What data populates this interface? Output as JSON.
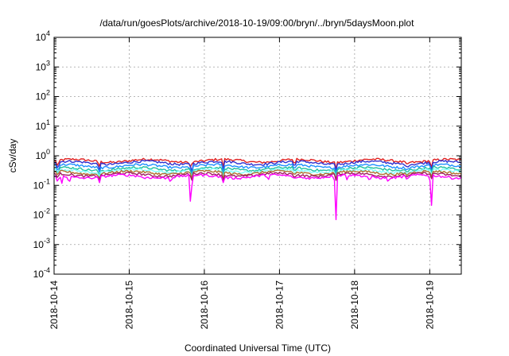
{
  "chart_data": {
    "type": "line",
    "title": "/data/run/goesPlots/archive/2018-10-19/09:00/bryn/../bryn/5daysMoon.plot",
    "xlabel": "Coordinated Universal Time (UTC)",
    "ylabel": "cSv/day",
    "yscale": "log",
    "ylim": [
      0.0001,
      10000
    ],
    "xlim": [
      0,
      5.42
    ],
    "x_ticks": [
      {
        "value": 0,
        "label": "2018-10-14"
      },
      {
        "value": 1,
        "label": "2018-10-15"
      },
      {
        "value": 2,
        "label": "2018-10-16"
      },
      {
        "value": 3,
        "label": "2018-10-17"
      },
      {
        "value": 4,
        "label": "2018-10-18"
      },
      {
        "value": 5,
        "label": "2018-10-19"
      }
    ],
    "y_ticks": [
      {
        "value": 0.0001,
        "base": "10",
        "exp": "-4"
      },
      {
        "value": 0.001,
        "base": "10",
        "exp": "-3"
      },
      {
        "value": 0.01,
        "base": "10",
        "exp": "-2"
      },
      {
        "value": 0.1,
        "base": "10",
        "exp": "-1"
      },
      {
        "value": 1,
        "base": "10",
        "exp": "0"
      },
      {
        "value": 10,
        "base": "10",
        "exp": "1"
      },
      {
        "value": 100,
        "base": "10",
        "exp": "2"
      },
      {
        "value": 1000,
        "base": "10",
        "exp": "3"
      },
      {
        "value": 10000,
        "base": "10",
        "exp": "4"
      }
    ],
    "grid": true,
    "legend": "none",
    "series": [
      {
        "color": "#e02020",
        "level": 0.68,
        "dips": [
          [
            0.05,
            0.35
          ],
          [
            0.6,
            0.4
          ],
          [
            1.82,
            0.35
          ],
          [
            2.25,
            0.4
          ],
          [
            3.2,
            0.45
          ],
          [
            3.75,
            0.35
          ],
          [
            4.7,
            0.45
          ],
          [
            5.02,
            0.35
          ]
        ]
      },
      {
        "color": "#3030d0",
        "level": 0.58,
        "dips": [
          [
            0.05,
            0.3
          ],
          [
            0.6,
            0.3
          ],
          [
            1.83,
            0.25
          ],
          [
            2.25,
            0.3
          ],
          [
            3.2,
            0.35
          ],
          [
            3.75,
            0.3
          ],
          [
            4.7,
            0.35
          ],
          [
            5.02,
            0.3
          ]
        ]
      },
      {
        "color": "#1e90ff",
        "level": 0.45,
        "dips": [
          [
            0.05,
            0.25
          ],
          [
            0.6,
            0.25
          ],
          [
            1.83,
            0.2
          ],
          [
            2.25,
            0.25
          ],
          [
            3.2,
            0.3
          ],
          [
            3.75,
            0.25
          ],
          [
            4.7,
            0.3
          ],
          [
            5.02,
            0.25
          ]
        ]
      },
      {
        "color": "#20c0a0",
        "level": 0.36,
        "dips": [
          [
            0.05,
            0.22
          ],
          [
            0.6,
            0.2
          ],
          [
            1.83,
            0.18
          ],
          [
            2.25,
            0.2
          ],
          [
            3.2,
            0.25
          ],
          [
            3.75,
            0.2
          ],
          [
            4.7,
            0.25
          ],
          [
            5.02,
            0.22
          ]
        ]
      },
      {
        "color": "#80ffff",
        "level": 0.31,
        "dips": [
          [
            0.05,
            0.2
          ],
          [
            0.6,
            0.18
          ],
          [
            1.83,
            0.16
          ],
          [
            2.25,
            0.18
          ],
          [
            3.2,
            0.22
          ],
          [
            3.75,
            0.18
          ],
          [
            4.7,
            0.22
          ],
          [
            5.02,
            0.2
          ]
        ]
      },
      {
        "color": "#b07030",
        "level": 0.27,
        "dips": [
          [
            0.05,
            0.18
          ],
          [
            0.6,
            0.16
          ],
          [
            1.83,
            0.15
          ],
          [
            2.25,
            0.16
          ],
          [
            3.2,
            0.2
          ],
          [
            3.75,
            0.16
          ],
          [
            4.7,
            0.2
          ],
          [
            5.02,
            0.18
          ]
        ]
      },
      {
        "color": "#a02060",
        "level": 0.23,
        "dips": [
          [
            0.05,
            0.15
          ],
          [
            0.6,
            0.14
          ],
          [
            1.83,
            0.13
          ],
          [
            2.25,
            0.14
          ],
          [
            3.2,
            0.17
          ],
          [
            3.75,
            0.14
          ],
          [
            4.7,
            0.17
          ],
          [
            5.02,
            0.15
          ]
        ]
      },
      {
        "color": "#ff00ff",
        "level": 0.2,
        "dips": [
          [
            0.05,
            0.1
          ],
          [
            0.1,
            0.1
          ],
          [
            0.2,
            0.11
          ],
          [
            0.6,
            0.11
          ],
          [
            1.2,
            0.15
          ],
          [
            1.55,
            0.12
          ],
          [
            1.82,
            0.011
          ],
          [
            2.25,
            0.12
          ],
          [
            2.85,
            0.14
          ],
          [
            3.2,
            0.15
          ],
          [
            3.75,
            0.0045
          ],
          [
            3.9,
            0.15
          ],
          [
            4.2,
            0.13
          ],
          [
            4.45,
            0.12
          ],
          [
            4.7,
            0.13
          ],
          [
            5.02,
            0.012
          ],
          [
            5.3,
            0.16
          ]
        ]
      }
    ]
  }
}
